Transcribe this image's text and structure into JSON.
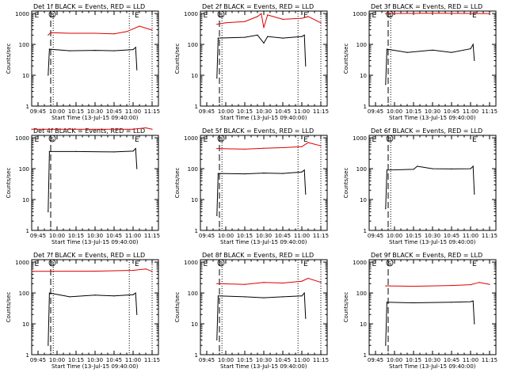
{
  "colors": {
    "events": "#000000",
    "lld": "#dd0000",
    "axis": "#000000",
    "background": "#ffffff"
  },
  "common": {
    "ylabel": "Counts/sec",
    "xlabel": "Start Time (13-Jul-15 09:40:00)",
    "title_suffix": " BLACK = Events, RED = LLD",
    "xticks": [
      "09:45",
      "10:00",
      "10:15",
      "10:30",
      "10:45",
      "11:00",
      "11:15"
    ],
    "yticks": [
      "1",
      "10",
      "100",
      "1000"
    ]
  },
  "marker_labels": {
    "start": "E",
    "sun": "S",
    "end": "E"
  },
  "chart_data": [
    {
      "type": "line",
      "title": "Det 1f",
      "xlim": [
        "09:40",
        "11:20"
      ],
      "ylim": [
        1,
        1200
      ],
      "yscale": "log",
      "grid": false,
      "x_markers": {
        "start": "09:44",
        "dashed": "09:55",
        "dotted1": "09:57",
        "dotted2": "10:57",
        "dotted3": "11:15",
        "end": "11:03"
      },
      "series": [
        {
          "name": "Events",
          "color": "events",
          "points": [
            [
              "09:53",
              10
            ],
            [
              "09:54",
              70
            ],
            [
              "10:10",
              62
            ],
            [
              "10:30",
              64
            ],
            [
              "10:45",
              62
            ],
            [
              "11:00",
              68
            ],
            [
              "11:02",
              80
            ],
            [
              "11:03",
              15
            ]
          ]
        },
        {
          "name": "LLD",
          "color": "lld",
          "points": [
            [
              "09:53",
              200
            ],
            [
              "09:55",
              240
            ],
            [
              "10:10",
              230
            ],
            [
              "10:30",
              230
            ],
            [
              "10:45",
              220
            ],
            [
              "10:55",
              260
            ],
            [
              "11:05",
              390
            ],
            [
              "11:15",
              290
            ]
          ]
        }
      ]
    },
    {
      "type": "line",
      "title": "Det 2f",
      "xlim": [
        "09:40",
        "11:20"
      ],
      "ylim": [
        1,
        1200
      ],
      "yscale": "log",
      "grid": false,
      "x_markers": {
        "start": "09:44",
        "dashed": "09:55",
        "dotted1": "09:57",
        "dotted2": "10:57",
        "dotted3": "11:15",
        "end": "11:03"
      },
      "series": [
        {
          "name": "Events",
          "color": "events",
          "points": [
            [
              "09:53",
              8
            ],
            [
              "09:54",
              160
            ],
            [
              "10:15",
              170
            ],
            [
              "10:25",
              200
            ],
            [
              "10:30",
              110
            ],
            [
              "10:33",
              180
            ],
            [
              "10:45",
              160
            ],
            [
              "11:00",
              180
            ],
            [
              "11:02",
              200
            ],
            [
              "11:03",
              20
            ]
          ]
        },
        {
          "name": "LLD",
          "color": "lld",
          "points": [
            [
              "09:53",
              450
            ],
            [
              "10:00",
              500
            ],
            [
              "10:15",
              550
            ],
            [
              "10:25",
              800
            ],
            [
              "10:28",
              1000
            ],
            [
              "10:30",
              350
            ],
            [
              "10:33",
              900
            ],
            [
              "10:45",
              650
            ],
            [
              "11:00",
              700
            ],
            [
              "11:05",
              800
            ],
            [
              "11:15",
              500
            ]
          ]
        }
      ]
    },
    {
      "type": "line",
      "title": "Det 3f",
      "xlim": [
        "09:40",
        "11:20"
      ],
      "ylim": [
        1,
        1200
      ],
      "yscale": "log",
      "grid": false,
      "x_markers": {
        "start": "09:44",
        "dashed": "09:55",
        "dotted1": "09:57",
        "dotted2": "",
        "dotted3": "",
        "end": "11:03"
      },
      "series": [
        {
          "name": "Events",
          "color": "events",
          "points": [
            [
              "09:53",
              5
            ],
            [
              "09:54",
              70
            ],
            [
              "10:10",
              55
            ],
            [
              "10:30",
              65
            ],
            [
              "10:45",
              55
            ],
            [
              "11:00",
              72
            ],
            [
              "11:02",
              100
            ],
            [
              "11:03",
              30
            ]
          ]
        },
        {
          "name": "LLD",
          "color": "lld",
          "points": [
            [
              "09:53",
              1000
            ],
            [
              "10:30",
              1020
            ],
            [
              "11:15",
              1000
            ]
          ]
        }
      ]
    },
    {
      "type": "line",
      "title": "Det 4f",
      "xlim": [
        "09:40",
        "11:20"
      ],
      "ylim": [
        1,
        1200
      ],
      "yscale": "log",
      "grid": false,
      "x_markers": {
        "start": "09:44",
        "dashed": "09:55",
        "dotted1": "",
        "dotted2": "",
        "dotted3": "",
        "end": "11:03"
      },
      "series": [
        {
          "name": "Events",
          "color": "events",
          "points": [
            [
              "09:53",
              4
            ],
            [
              "09:54",
              360
            ],
            [
              "10:15",
              360
            ],
            [
              "10:45",
              350
            ],
            [
              "11:00",
              370
            ],
            [
              "11:02",
              450
            ],
            [
              "11:03",
              100
            ]
          ]
        },
        {
          "name": "LLD",
          "color": "lld",
          "points": [
            [
              "09:40",
              1900
            ],
            [
              "11:00",
              1900
            ],
            [
              "11:10",
              2100
            ],
            [
              "11:15",
              1900
            ]
          ]
        }
      ]
    },
    {
      "type": "line",
      "title": "Det 5f",
      "xlim": [
        "09:40",
        "11:20"
      ],
      "ylim": [
        1,
        1200
      ],
      "yscale": "log",
      "grid": false,
      "x_markers": {
        "start": "09:44",
        "dashed": "09:55",
        "dotted1": "09:57",
        "dotted2": "10:57",
        "dotted3": "11:15",
        "end": "11:03"
      },
      "series": [
        {
          "name": "Events",
          "color": "events",
          "points": [
            [
              "09:53",
              3
            ],
            [
              "09:54",
              70
            ],
            [
              "10:15",
              68
            ],
            [
              "10:30",
              72
            ],
            [
              "10:45",
              70
            ],
            [
              "11:00",
              78
            ],
            [
              "11:02",
              90
            ],
            [
              "11:03",
              15
            ]
          ]
        },
        {
          "name": "LLD",
          "color": "lld",
          "points": [
            [
              "09:53",
              450
            ],
            [
              "10:15",
              430
            ],
            [
              "10:30",
              460
            ],
            [
              "10:45",
              480
            ],
            [
              "11:00",
              520
            ],
            [
              "11:05",
              700
            ],
            [
              "11:15",
              550
            ]
          ]
        }
      ]
    },
    {
      "type": "line",
      "title": "Det 6f",
      "xlim": [
        "09:40",
        "11:20"
      ],
      "ylim": [
        1,
        1200
      ],
      "yscale": "log",
      "grid": false,
      "x_markers": {
        "start": "09:44",
        "dashed": "09:55",
        "dotted1": "09:57",
        "dotted2": "",
        "dotted3": "",
        "end": "11:03"
      },
      "series": [
        {
          "name": "Events",
          "color": "events",
          "points": [
            [
              "09:53",
              5
            ],
            [
              "09:54",
              90
            ],
            [
              "10:15",
              95
            ],
            [
              "10:18",
              120
            ],
            [
              "10:30",
              100
            ],
            [
              "10:45",
              98
            ],
            [
              "11:00",
              100
            ],
            [
              "11:02",
              120
            ],
            [
              "11:03",
              15
            ]
          ]
        }
      ]
    },
    {
      "type": "line",
      "title": "Det 7f",
      "xlim": [
        "09:40",
        "11:20"
      ],
      "ylim": [
        1,
        1200
      ],
      "yscale": "log",
      "grid": false,
      "x_markers": {
        "start": "09:44",
        "dashed": "09:55",
        "dotted1": "09:57",
        "dotted2": "10:57",
        "dotted3": "11:15",
        "end": "11:03"
      },
      "series": [
        {
          "name": "Events",
          "color": "events",
          "points": [
            [
              "09:53",
              2
            ],
            [
              "09:54",
              100
            ],
            [
              "10:10",
              75
            ],
            [
              "10:30",
              85
            ],
            [
              "10:45",
              80
            ],
            [
              "11:00",
              88
            ],
            [
              "11:02",
              100
            ],
            [
              "11:03",
              20
            ]
          ]
        },
        {
          "name": "LLD",
          "color": "lld",
          "points": [
            [
              "09:40",
              500
            ],
            [
              "10:30",
              510
            ],
            [
              "11:00",
              540
            ],
            [
              "11:10",
              600
            ],
            [
              "11:15",
              500
            ]
          ]
        }
      ]
    },
    {
      "type": "line",
      "title": "Det 8f",
      "xlim": [
        "09:40",
        "11:20"
      ],
      "ylim": [
        1,
        1200
      ],
      "yscale": "log",
      "grid": false,
      "x_markers": {
        "start": "09:44",
        "dashed": "09:55",
        "dotted1": "09:57",
        "dotted2": "10:57",
        "dotted3": "11:15",
        "end": "11:03"
      },
      "series": [
        {
          "name": "Events",
          "color": "events",
          "points": [
            [
              "09:53",
              3
            ],
            [
              "09:54",
              80
            ],
            [
              "10:15",
              75
            ],
            [
              "10:30",
              70
            ],
            [
              "10:45",
              75
            ],
            [
              "11:00",
              80
            ],
            [
              "11:02",
              100
            ],
            [
              "11:03",
              15
            ]
          ]
        },
        {
          "name": "LLD",
          "color": "lld",
          "points": [
            [
              "09:53",
              200
            ],
            [
              "10:15",
              190
            ],
            [
              "10:30",
              220
            ],
            [
              "10:45",
              210
            ],
            [
              "11:00",
              240
            ],
            [
              "11:05",
              300
            ],
            [
              "11:15",
              220
            ]
          ]
        }
      ]
    },
    {
      "type": "line",
      "title": "Det 9f",
      "xlim": [
        "09:40",
        "11:20"
      ],
      "ylim": [
        1,
        1200
      ],
      "yscale": "log",
      "grid": false,
      "x_markers": {
        "start": "09:44",
        "dashed": "09:55",
        "dotted1": "",
        "dotted2": "",
        "dotted3": "",
        "end": "11:03"
      },
      "series": [
        {
          "name": "Events",
          "color": "events",
          "points": [
            [
              "09:53",
              2
            ],
            [
              "09:54",
              50
            ],
            [
              "10:15",
              48
            ],
            [
              "10:45",
              50
            ],
            [
              "11:00",
              52
            ],
            [
              "11:02",
              55
            ],
            [
              "11:03",
              10
            ]
          ]
        },
        {
          "name": "LLD",
          "color": "lld",
          "points": [
            [
              "09:53",
              170
            ],
            [
              "10:15",
              165
            ],
            [
              "10:45",
              175
            ],
            [
              "11:00",
              185
            ],
            [
              "11:07",
              220
            ],
            [
              "11:15",
              190
            ]
          ]
        }
      ]
    }
  ]
}
